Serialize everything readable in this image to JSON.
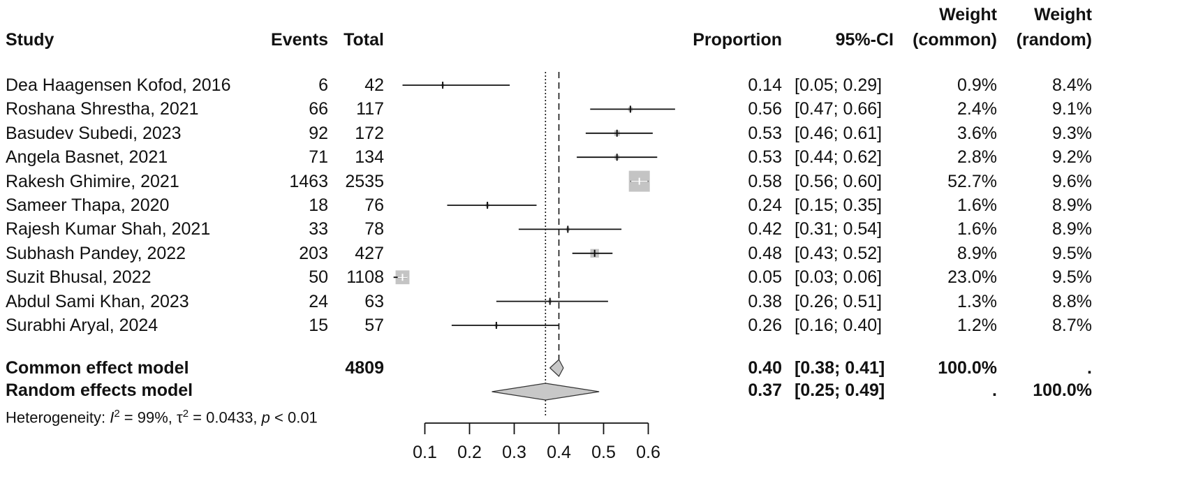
{
  "header": {
    "study": "Study",
    "events": "Events",
    "total": "Total",
    "proportion": "Proportion",
    "ci": "95%-CI",
    "weight_common_l1": "Weight",
    "weight_common_l2": "(common)",
    "weight_random_l1": "Weight",
    "weight_random_l2": "(random)"
  },
  "studies": [
    {
      "study": "Dea Haagensen Kofod, 2016",
      "events": "6",
      "total": "42",
      "proportion": "0.14",
      "ci": "[0.05; 0.29]",
      "w_common": "0.9%",
      "w_random": "8.4%"
    },
    {
      "study": "Roshana Shrestha, 2021",
      "events": "66",
      "total": "117",
      "proportion": "0.56",
      "ci": "[0.47; 0.66]",
      "w_common": "2.4%",
      "w_random": "9.1%"
    },
    {
      "study": "Basudev Subedi, 2023",
      "events": "92",
      "total": "172",
      "proportion": "0.53",
      "ci": "[0.46; 0.61]",
      "w_common": "3.6%",
      "w_random": "9.3%"
    },
    {
      "study": "Angela Basnet, 2021",
      "events": "71",
      "total": "134",
      "proportion": "0.53",
      "ci": "[0.44; 0.62]",
      "w_common": "2.8%",
      "w_random": "9.2%"
    },
    {
      "study": "Rakesh Ghimire, 2021",
      "events": "1463",
      "total": "2535",
      "proportion": "0.58",
      "ci": "[0.56; 0.60]",
      "w_common": "52.7%",
      "w_random": "9.6%"
    },
    {
      "study": "Sameer Thapa, 2020",
      "events": "18",
      "total": "76",
      "proportion": "0.24",
      "ci": "[0.15; 0.35]",
      "w_common": "1.6%",
      "w_random": "8.9%"
    },
    {
      "study": "Rajesh Kumar Shah, 2021",
      "events": "33",
      "total": "78",
      "proportion": "0.42",
      "ci": "[0.31; 0.54]",
      "w_common": "1.6%",
      "w_random": "8.9%"
    },
    {
      "study": "Subhash Pandey, 2022",
      "events": "203",
      "total": "427",
      "proportion": "0.48",
      "ci": "[0.43; 0.52]",
      "w_common": "8.9%",
      "w_random": "9.5%"
    },
    {
      "study": "Suzit Bhusal, 2022",
      "events": "50",
      "total": "1108",
      "proportion": "0.05",
      "ci": "[0.03; 0.06]",
      "w_common": "23.0%",
      "w_random": "9.5%"
    },
    {
      "study": "Abdul Sami Khan, 2023",
      "events": "24",
      "total": "63",
      "proportion": "0.38",
      "ci": "[0.26; 0.51]",
      "w_common": "1.3%",
      "w_random": "8.8%"
    },
    {
      "study": "Surabhi Aryal, 2024",
      "events": "15",
      "total": "57",
      "proportion": "0.26",
      "ci": "[0.16; 0.40]",
      "w_common": "1.2%",
      "w_random": "8.7%"
    }
  ],
  "summary": {
    "common": {
      "label": "Common effect model",
      "total": "4809",
      "proportion": "0.40",
      "ci": "[0.38; 0.41]",
      "w_common": "100.0%",
      "w_random": "."
    },
    "random": {
      "label": "Random effects model",
      "proportion": "0.37",
      "ci": "[0.25; 0.49]",
      "w_common": ".",
      "w_random": "100.0%"
    }
  },
  "heterogeneity": {
    "prefix": "Heterogeneity: ",
    "i_sym": "I",
    "sup2": "2",
    "i_val": " = 99%, ",
    "tau_sym": "τ",
    "tau_val": " = 0.0433, ",
    "p_sym": "p",
    "p_val": " < 0.01"
  },
  "chart_data": {
    "type": "forest",
    "xlim": [
      0.05,
      0.6
    ],
    "x_ticks": [
      "0.1",
      "0.2",
      "0.3",
      "0.4",
      "0.5",
      "0.6"
    ],
    "common_estimate": 0.4,
    "random_estimate": 0.37,
    "series": [
      {
        "est": 0.14,
        "lo": 0.05,
        "hi": 0.29,
        "weight": 0.9
      },
      {
        "est": 0.56,
        "lo": 0.47,
        "hi": 0.66,
        "weight": 2.4
      },
      {
        "est": 0.53,
        "lo": 0.46,
        "hi": 0.61,
        "weight": 3.6
      },
      {
        "est": 0.53,
        "lo": 0.44,
        "hi": 0.62,
        "weight": 2.8
      },
      {
        "est": 0.58,
        "lo": 0.56,
        "hi": 0.6,
        "weight": 52.7
      },
      {
        "est": 0.24,
        "lo": 0.15,
        "hi": 0.35,
        "weight": 1.6
      },
      {
        "est": 0.42,
        "lo": 0.31,
        "hi": 0.54,
        "weight": 1.6
      },
      {
        "est": 0.48,
        "lo": 0.43,
        "hi": 0.52,
        "weight": 8.9
      },
      {
        "est": 0.05,
        "lo": 0.03,
        "hi": 0.06,
        "weight": 23.0
      },
      {
        "est": 0.38,
        "lo": 0.26,
        "hi": 0.51,
        "weight": 1.3
      },
      {
        "est": 0.26,
        "lo": 0.16,
        "hi": 0.4,
        "weight": 1.2
      }
    ],
    "common": {
      "est": 0.4,
      "lo": 0.38,
      "hi": 0.41
    },
    "random": {
      "est": 0.37,
      "lo": 0.25,
      "hi": 0.49
    },
    "colors": {
      "line": "#111111",
      "box": "#c4c4c4",
      "diamond": "#c8c8c8"
    }
  }
}
